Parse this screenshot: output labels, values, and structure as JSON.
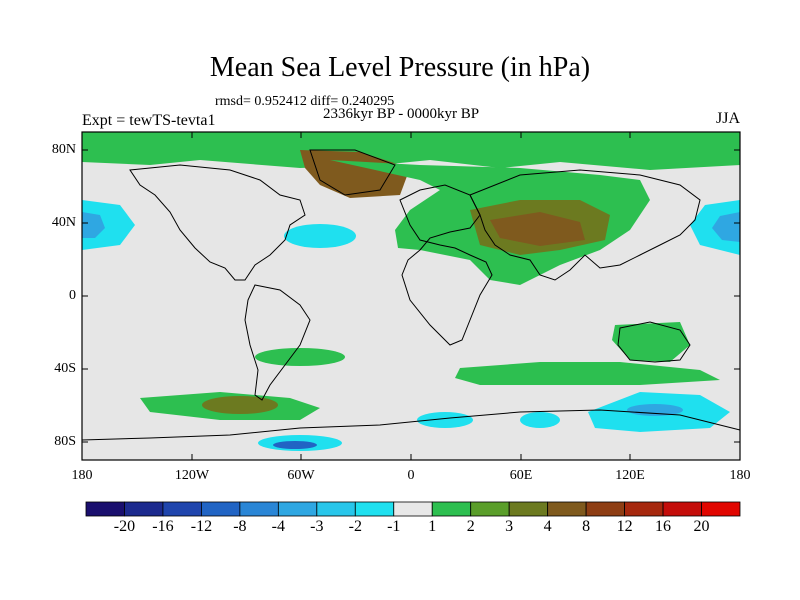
{
  "title": "Mean Sea Level Pressure (in hPa)",
  "stats": "rmsd= 0.952412 diff= 0.240295",
  "period": "2336kyr BP - 0000kyr BP",
  "experiment": "Expt = tewTS-tevta1",
  "season": "JJA",
  "lat_ticks": [
    "80N",
    "40N",
    "0",
    "40S",
    "80S"
  ],
  "lon_ticks": [
    "180",
    "120W",
    "60W",
    "0",
    "60E",
    "120E",
    "180"
  ],
  "colorbar": {
    "labels": [
      "-20",
      "-16",
      "-12",
      "-8",
      "-4",
      "-3",
      "-2",
      "-1",
      "1",
      "2",
      "3",
      "4",
      "8",
      "12",
      "16",
      "20"
    ],
    "colors": [
      "#1a0f6e",
      "#1c2a8e",
      "#1f45ad",
      "#2164c4",
      "#2a86d6",
      "#2fa7e2",
      "#28c6ea",
      "#1fe0ef",
      "#e8e8e8",
      "#2dbf50",
      "#5a9e2a",
      "#6c7a20",
      "#7f5a1e",
      "#8e3e14",
      "#a6280e",
      "#c40d0a",
      "#e10600"
    ]
  },
  "colors": {
    "land_bg": "#e6e6e6",
    "green": "#2dbf50",
    "olive": "#6c7a20",
    "brown": "#7f5a1e",
    "cyan": "#1fe0ef",
    "lightblue": "#2fa7e2",
    "blue": "#2164c4"
  }
}
